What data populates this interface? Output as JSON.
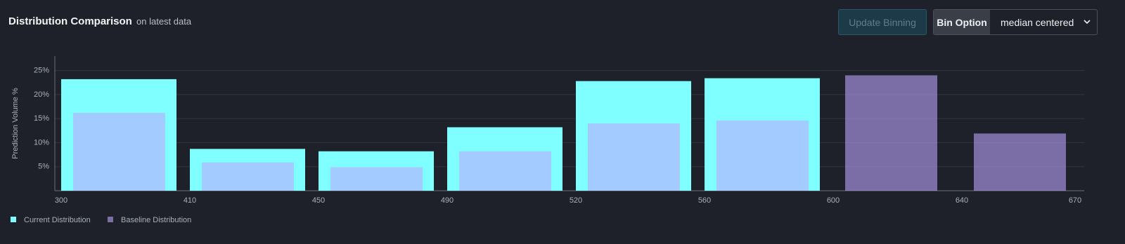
{
  "header": {
    "title": "Distribution Comparison",
    "subtitle": "on latest data"
  },
  "controls": {
    "update_button": "Update Binning",
    "bin_option_label": "Bin Option",
    "bin_option_value": "median centered"
  },
  "chart_data": {
    "type": "bar",
    "y_label": "Prediction Volume %",
    "x_edges": [
      300,
      410,
      450,
      490,
      520,
      560,
      600,
      640,
      670
    ],
    "series": [
      {
        "name": "Current Distribution",
        "color": "#7fffff",
        "values": [
          23.2,
          8.7,
          8.2,
          13.2,
          22.8,
          23.4,
          null,
          null
        ]
      },
      {
        "name": "Baseline Distribution",
        "color": "#c0a6ff",
        "values": [
          16.2,
          5.9,
          4.9,
          8.2,
          14.0,
          14.6,
          24.0,
          11.9
        ]
      }
    ],
    "ylim": [
      0,
      28
    ],
    "yticks": [
      {
        "value": 5,
        "label": "5%"
      },
      {
        "value": 10,
        "label": "10%"
      },
      {
        "value": 15,
        "label": "15%"
      },
      {
        "value": 20,
        "label": "20%"
      },
      {
        "value": 25,
        "label": "25%"
      }
    ],
    "grid": true
  }
}
